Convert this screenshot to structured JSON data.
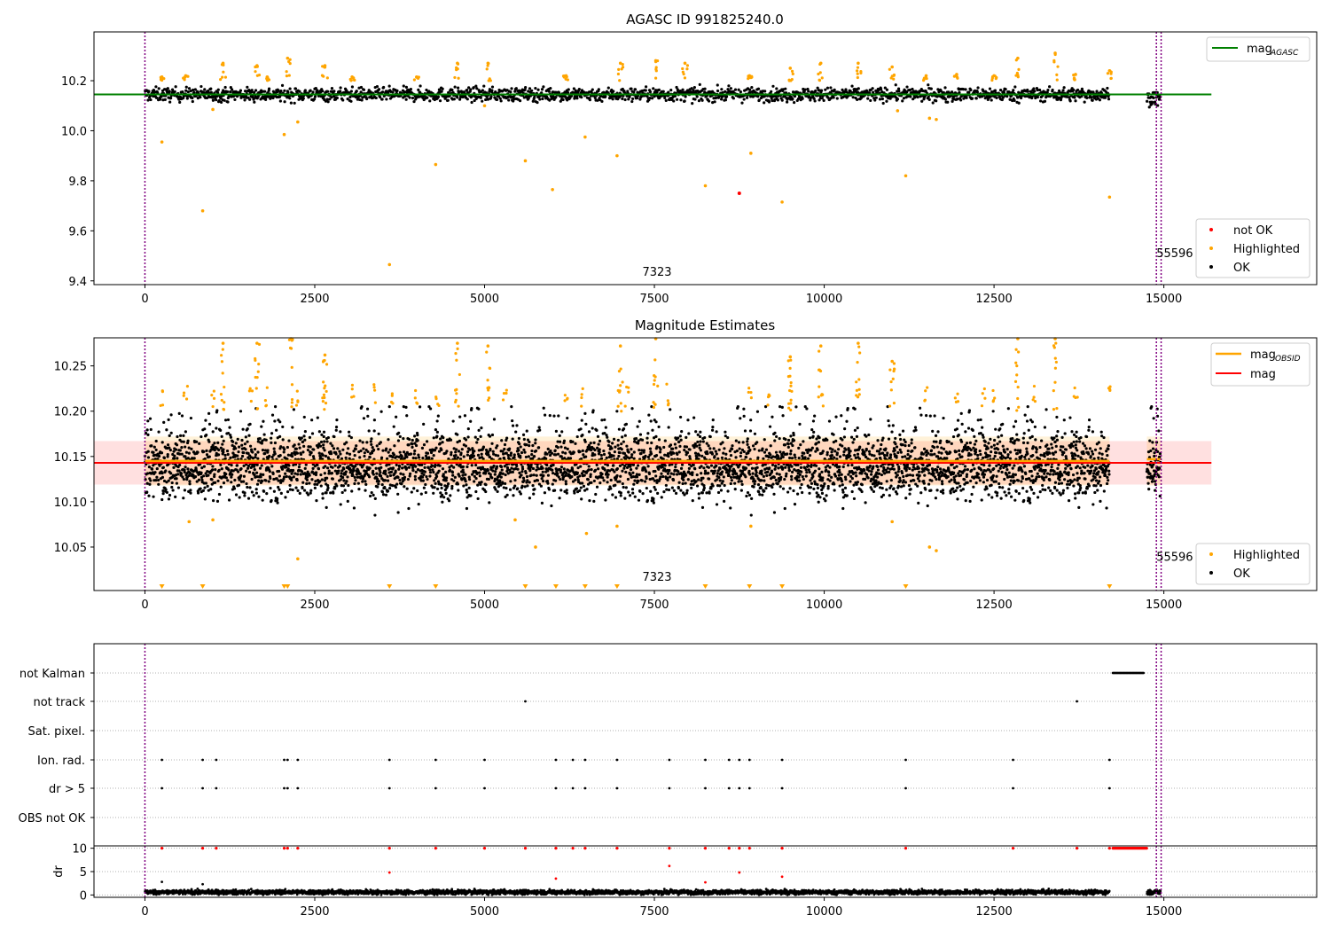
{
  "chart_data": [
    {
      "type": "scatter",
      "title": "AGASC ID 991825240.0",
      "xlabel": "",
      "ylabel": "",
      "xlim": [
        -750,
        17250
      ],
      "ylim": [
        9.385,
        10.395
      ],
      "xticks": [
        0,
        2500,
        5000,
        7500,
        10000,
        12500,
        15000
      ],
      "yticks": [
        9.4,
        9.6,
        9.8,
        10.0,
        10.2
      ],
      "ytick_labels": [
        "9.4",
        "9.6",
        "9.8",
        "10.0",
        "10.2"
      ],
      "vlines": [
        0,
        14890,
        14960
      ],
      "vline_color": "#800080",
      "hline": {
        "value": 10.145,
        "color": "#008000",
        "x_range": [
          -750,
          15700
        ]
      },
      "annotations": [
        {
          "text": "7323",
          "x": 7323,
          "y": 9.42
        },
        {
          "text": "55596",
          "x": 14890,
          "y": 9.495
        }
      ],
      "legend_lines": {
        "position": "top-right",
        "entries": [
          {
            "label": "mag",
            "subscript": "AGASC",
            "color": "#008000"
          }
        ]
      },
      "legend_points": {
        "position": "lower-right",
        "entries": [
          {
            "label": "not OK",
            "color": "#ff0000"
          },
          {
            "label": "Highlighted",
            "color": "#ffa500"
          },
          {
            "label": "OK",
            "color": "#000000"
          }
        ]
      },
      "ok_series": {
        "name": "OK",
        "color": "#000000",
        "segments": [
          [
            0,
            14200,
            10.145
          ],
          [
            14750,
            14950,
            10.13
          ]
        ],
        "spread": 0.03
      },
      "highlighted": {
        "name": "Highlighted",
        "color": "#ffa500",
        "points": [
          [
            250,
            9.955
          ],
          [
            850,
            9.68
          ],
          [
            2050,
            9.985
          ],
          [
            2250,
            10.035
          ],
          [
            3600,
            9.465
          ],
          [
            4280,
            9.865
          ],
          [
            5600,
            9.88
          ],
          [
            6000,
            9.765
          ],
          [
            6480,
            9.975
          ],
          [
            6950,
            9.9
          ],
          [
            8250,
            9.78
          ],
          [
            8920,
            9.91
          ],
          [
            9380,
            9.715
          ],
          [
            11200,
            9.82
          ],
          [
            14200,
            9.735
          ],
          [
            1000,
            10.085
          ],
          [
            5000,
            10.1
          ],
          [
            11080,
            10.08
          ],
          [
            11550,
            10.05
          ],
          [
            11650,
            10.045
          ],
          [
            2100,
            10.29
          ],
          [
            1150,
            10.27
          ],
          [
            1650,
            10.26
          ],
          [
            2650,
            10.26
          ],
          [
            4600,
            10.27
          ],
          [
            5050,
            10.27
          ],
          [
            7000,
            10.27
          ],
          [
            7520,
            10.28
          ],
          [
            7950,
            10.27
          ],
          [
            9500,
            10.25
          ],
          [
            9950,
            10.27
          ],
          [
            10500,
            10.27
          ],
          [
            11000,
            10.255
          ],
          [
            12850,
            10.29
          ],
          [
            13400,
            10.31
          ],
          [
            14200,
            10.24
          ],
          [
            250,
            10.215
          ],
          [
            600,
            10.22
          ],
          [
            1800,
            10.215
          ],
          [
            3050,
            10.215
          ],
          [
            4000,
            10.215
          ],
          [
            6200,
            10.22
          ],
          [
            8900,
            10.22
          ],
          [
            11500,
            10.22
          ],
          [
            11950,
            10.225
          ],
          [
            12500,
            10.22
          ],
          [
            13700,
            10.225
          ]
        ]
      },
      "not_ok": {
        "name": "not OK",
        "color": "#ff0000",
        "points": [
          [
            8750,
            9.75
          ]
        ]
      }
    },
    {
      "type": "scatter",
      "title": "Magnitude Estimates",
      "xlabel": "",
      "ylabel": "",
      "xlim": [
        -750,
        17250
      ],
      "ylim": [
        10.002,
        10.281
      ],
      "xticks": [
        0,
        2500,
        5000,
        7500,
        10000,
        12500,
        15000
      ],
      "yticks": [
        10.05,
        10.1,
        10.15,
        10.2,
        10.25
      ],
      "ytick_labels": [
        "10.05",
        "10.10",
        "10.15",
        "10.20",
        "10.25"
      ],
      "vlines": [
        0,
        14890,
        14960
      ],
      "vline_color": "#800080",
      "hline_mag": {
        "value": 10.143,
        "band": [
          10.119,
          10.167
        ],
        "color": "#ff0000",
        "x_range": [
          -750,
          15700
        ]
      },
      "mag_obsid": {
        "color": "#ffa500",
        "band": [
          10.118,
          10.172
        ],
        "segments": [
          [
            0,
            14200,
            10.145
          ],
          [
            14750,
            14950,
            10.147
          ]
        ]
      },
      "annotations": [
        {
          "text": "7323",
          "x": 7323,
          "y": 10.013
        },
        {
          "text": "55596",
          "x": 14890,
          "y": 10.035
        }
      ],
      "legend_lines": {
        "position": "top-right",
        "entries": [
          {
            "label": "mag",
            "subscript": "OBSID",
            "color": "#ffa500"
          },
          {
            "label": "mag",
            "subscript": "",
            "color": "#ff0000"
          }
        ]
      },
      "legend_points": {
        "position": "lower-right",
        "entries": [
          {
            "label": "Highlighted",
            "color": "#ffa500"
          },
          {
            "label": "OK",
            "color": "#000000"
          }
        ]
      },
      "ok_series": {
        "name": "OK",
        "color": "#000000",
        "center": 10.14,
        "spread": 0.025
      },
      "highlighted": {
        "name": "Highlighted",
        "color": "#ffa500",
        "points": [
          [
            650,
            10.078
          ],
          [
            1000,
            10.08
          ],
          [
            2250,
            10.037
          ],
          [
            5450,
            10.08
          ],
          [
            5750,
            10.05
          ],
          [
            6500,
            10.065
          ],
          [
            6950,
            10.073
          ],
          [
            8920,
            10.073
          ],
          [
            11000,
            10.078
          ],
          [
            11550,
            10.05
          ],
          [
            11650,
            10.046
          ],
          [
            2150,
            10.28
          ],
          [
            1150,
            10.275
          ],
          [
            1650,
            10.275
          ],
          [
            4600,
            10.275
          ],
          [
            5050,
            10.272
          ],
          [
            7000,
            10.272
          ],
          [
            7520,
            10.28
          ],
          [
            9950,
            10.272
          ],
          [
            10500,
            10.275
          ],
          [
            12850,
            10.28
          ],
          [
            13400,
            10.28
          ],
          [
            2650,
            10.262
          ],
          [
            9500,
            10.26
          ],
          [
            11000,
            10.255
          ]
        ]
      },
      "offscale_markers": {
        "color": "#ffa500",
        "x": [
          250,
          850,
          2050,
          2100,
          3600,
          4280,
          5600,
          6050,
          6480,
          6950,
          8250,
          8900,
          9380,
          11200,
          14200
        ]
      }
    },
    {
      "type": "scatter",
      "title": "",
      "xlabel": "",
      "ylabel": "",
      "xlim": [
        -750,
        17250
      ],
      "xticks": [
        0,
        2500,
        5000,
        7500,
        10000,
        12500,
        15000
      ],
      "categories": [
        "not Kalman",
        "not track",
        "Sat. pixel.",
        "Ion. rad.",
        "dr > 5",
        "OBS not OK"
      ],
      "vlines": [
        0,
        14890,
        14960
      ],
      "vline_color": "#800080",
      "flags": {
        "not Kalman": {
          "range": [
            14250,
            14700
          ]
        },
        "not track": {
          "x": [
            5600,
            13720
          ]
        },
        "Sat. pixel.": {
          "x": []
        },
        "Ion. rad.": {
          "x": [
            250,
            850,
            1050,
            2050,
            2100,
            2250,
            3600,
            4280,
            5000,
            6050,
            6300,
            6480,
            6950,
            7720,
            8250,
            8600,
            8750,
            8900,
            9380,
            11200,
            12780,
            14200
          ]
        },
        "dr > 5": {
          "x": [
            250,
            850,
            1050,
            2050,
            2100,
            2250,
            3600,
            4280,
            5000,
            6050,
            6300,
            6480,
            6950,
            7720,
            8250,
            8600,
            8750,
            8900,
            9380,
            11200,
            12780,
            14200
          ]
        },
        "OBS not OK": {
          "x": []
        }
      }
    },
    {
      "type": "scatter",
      "title": "",
      "xlabel": "",
      "ylabel": "dr",
      "xlim": [
        -750,
        17250
      ],
      "ylim": [
        -0.5,
        10.5
      ],
      "xticks": [
        0,
        2500,
        5000,
        7500,
        10000,
        12500,
        15000
      ],
      "xtick_labels": [
        "0",
        "2500",
        "5000",
        "7500",
        "10000",
        "12500",
        "15000"
      ],
      "yticks": [
        0,
        5,
        10
      ],
      "ytick_labels": [
        "0",
        "5",
        "10"
      ],
      "vlines": [
        0,
        14890,
        14960
      ],
      "vline_color": "#800080",
      "ok_series": {
        "name": "OK",
        "color": "#000000",
        "segments": [
          [
            0,
            14200
          ],
          [
            14750,
            14950
          ]
        ],
        "typical": 0.6,
        "spread": 0.4
      },
      "clipped": {
        "color": "#ff0000",
        "value": 10,
        "x": [
          250,
          850,
          1050,
          2050,
          2100,
          2250,
          3600,
          4280,
          5000,
          5600,
          6050,
          6300,
          6480,
          6950,
          7720,
          8250,
          8600,
          8750,
          8900,
          9380,
          11200,
          12780,
          13720,
          14200
        ],
        "range": [
          14250,
          14750
        ]
      },
      "outliers_red": [
        [
          3600,
          4.8
        ],
        [
          6050,
          3.5
        ],
        [
          7720,
          6.2
        ],
        [
          8750,
          4.8
        ],
        [
          9380,
          3.9
        ],
        [
          8250,
          2.7
        ]
      ],
      "outliers_black": [
        [
          250,
          2.8
        ],
        [
          850,
          2.3
        ]
      ]
    }
  ]
}
